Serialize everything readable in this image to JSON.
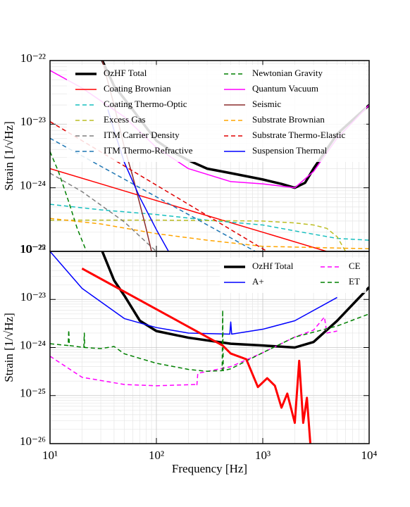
{
  "chart_data": [
    {
      "type": "line",
      "ylabel": "Strain [1/√Hz]",
      "log_x": true,
      "log_y": true,
      "grid": true,
      "minor_grid": true,
      "xlim": [
        10,
        10000
      ],
      "xticks": [
        10,
        100,
        1000,
        10000
      ],
      "xtick_labels": false,
      "ylim": [
        1e-25,
        1e-22
      ],
      "yticks": [
        {
          "value": 1e-25,
          "label": "10⁻²⁵"
        },
        {
          "value": 1e-24,
          "label": "10⁻²⁴"
        },
        {
          "value": 1e-23,
          "label": "10⁻²³"
        },
        {
          "value": 1e-22,
          "label": "10⁻²²"
        }
      ],
      "legend": "upper right",
      "legend_columns": 2,
      "series": [
        {
          "name": "OzHF Total",
          "color": "#000000",
          "linestyle": "solid",
          "linewidth": 3.5,
          "x": [
            31,
            40,
            50,
            70,
            100,
            150,
            200,
            300,
            500,
            1000,
            1500,
            2000,
            2500,
            3000,
            5000,
            10000
          ],
          "values": [
            1e-22,
            4e-23,
            2.5e-23,
            1.2e-23,
            5.5e-24,
            3.5e-24,
            2.7e-24,
            2e-24,
            1.7e-24,
            1.35e-24,
            1.15e-24,
            1e-24,
            1.2e-24,
            2e-24,
            7e-24,
            2e-23
          ]
        },
        {
          "name": "Coating Brownian",
          "color": "#ff0000",
          "linestyle": "solid",
          "linewidth": 1.5,
          "x": [
            10,
            100,
            1000,
            10000
          ],
          "values": [
            2e-24,
            6.3e-25,
            2e-25,
            6.3e-26
          ]
        },
        {
          "name": "Coating Thermo-Optic",
          "color": "#17bfbf",
          "linestyle": "dashed",
          "linewidth": 1.5,
          "x": [
            10,
            30,
            100,
            300,
            1000,
            2000,
            5000,
            10000
          ],
          "values": [
            5.5e-25,
            4.5e-25,
            3.8e-25,
            3.1e-25,
            2.6e-25,
            2.1e-25,
            1.6e-25,
            1.5e-25
          ]
        },
        {
          "name": "Excess Gas",
          "color": "#bcbd22",
          "linestyle": "dashed",
          "linewidth": 1.5,
          "x": [
            10,
            100,
            1000,
            2000,
            3000,
            4000,
            5000,
            6000
          ],
          "values": [
            3.1e-25,
            3.1e-25,
            3e-25,
            2.8e-25,
            2.6e-25,
            2.3e-25,
            1.7e-25,
            1e-25
          ]
        },
        {
          "name": "ITM Carrier Density",
          "color": "#7f7f7f",
          "linestyle": "dashed",
          "linewidth": 1.5,
          "x": [
            10,
            20,
            50,
            80,
            100
          ],
          "values": [
            1.7e-24,
            8.7e-25,
            2.9e-25,
            1.4e-25,
            1e-25
          ]
        },
        {
          "name": "ITM Thermo-Refractive",
          "color": "#1f77b4",
          "linestyle": "dashed",
          "linewidth": 1.5,
          "x": [
            10,
            100,
            850
          ],
          "values": [
            6e-24,
            7.2e-25,
            1e-25
          ]
        },
        {
          "name": "Newtonian Gravity",
          "color": "#008000",
          "linestyle": "dashed",
          "linewidth": 1.5,
          "x": [
            10,
            12,
            15,
            18,
            22
          ],
          "values": [
            3.7e-24,
            1.8e-24,
            6e-25,
            2.3e-25,
            1e-25
          ]
        },
        {
          "name": "Quantum Vacuum",
          "color": "#ff00ff",
          "linestyle": "solid",
          "linewidth": 1.5,
          "x": [
            10,
            20,
            50,
            100,
            200,
            500,
            1000,
            2000,
            3000,
            5000,
            10000
          ],
          "values": [
            7e-23,
            3.7e-23,
            1.3e-23,
            4.3e-24,
            2e-24,
            1.25e-24,
            1.15e-24,
            1e-24,
            1.8e-24,
            6e-24,
            2e-23
          ]
        },
        {
          "name": "Seismic",
          "color": "#8c2d2d",
          "linestyle": "solid",
          "linewidth": 1.5,
          "x": [
            31,
            40,
            50,
            60,
            70,
            80,
            90
          ],
          "values": [
            1e-22,
            2e-23,
            4.3e-24,
            1.5e-24,
            5.5e-25,
            2.3e-25,
            1e-25
          ]
        },
        {
          "name": "Substrate Brownian",
          "color": "#ffa500",
          "linestyle": "dashed",
          "linewidth": 1.5,
          "x": [
            10,
            30,
            100,
            300,
            1000,
            10000
          ],
          "values": [
            3.3e-25,
            2.7e-25,
            1.9e-25,
            1.5e-25,
            1.2e-25,
            1.1e-25
          ]
        },
        {
          "name": "Substrate Thermo-Elastic",
          "color": "#e00000",
          "linestyle": "dashed",
          "linewidth": 1.5,
          "x": [
            10,
            100,
            1000,
            1100
          ],
          "values": [
            1.1e-23,
            1.1e-24,
            1.1e-25,
            1e-25
          ]
        },
        {
          "name": "Suspension Thermal",
          "color": "#0000ff",
          "linestyle": "solid",
          "linewidth": 1.5,
          "x": [
            35,
            40,
            50,
            70,
            100,
            130
          ],
          "values": [
            1.7e-23,
            8e-24,
            2.5e-24,
            7e-25,
            2.2e-25,
            1e-25
          ]
        }
      ]
    },
    {
      "type": "line",
      "ylabel": "Strain [1/√Hz]",
      "xlabel": "Frequency [Hz]",
      "log_x": true,
      "log_y": true,
      "grid": true,
      "minor_grid": true,
      "xlim": [
        10,
        10000
      ],
      "xticks": [
        {
          "value": 10,
          "label": "10¹"
        },
        {
          "value": 100,
          "label": "10²"
        },
        {
          "value": 1000,
          "label": "10³"
        },
        {
          "value": 10000,
          "label": "10⁴"
        }
      ],
      "xtick_labels": true,
      "ylim": [
        1e-26,
        1e-22
      ],
      "yticks": [
        {
          "value": 1e-26,
          "label": "10⁻²⁶"
        },
        {
          "value": 1e-25,
          "label": "10⁻²⁵"
        },
        {
          "value": 1e-24,
          "label": "10⁻²⁴"
        },
        {
          "value": 1e-23,
          "label": "10⁻²³"
        },
        {
          "value": 1e-22,
          "label": "10⁻²²"
        }
      ],
      "legend": "upper right",
      "legend_columns": 2,
      "series": [
        {
          "name": "OzHf Total",
          "color": "#000000",
          "linestyle": "solid",
          "linewidth": 3.5,
          "x": [
            31,
            40,
            50,
            70,
            100,
            200,
            500,
            1000,
            2000,
            3000,
            5000,
            10000
          ],
          "values": [
            1e-22,
            2.5e-23,
            1.2e-23,
            3.6e-24,
            2.2e-24,
            1.6e-24,
            1.2e-24,
            1.1e-24,
            1e-24,
            1.3e-24,
            3.6e-24,
            1.8e-23
          ]
        },
        {
          "name": "A+",
          "color": "#0000ff",
          "linestyle": "solid",
          "linewidth": 1.5,
          "x": [
            10,
            20,
            50,
            100,
            200,
            490,
            500,
            510,
            1000,
            2000,
            5000
          ],
          "values": [
            1e-22,
            1.7e-23,
            4e-24,
            2.6e-24,
            2e-24,
            1.9e-24,
            3.4e-24,
            1.9e-24,
            2.4e-24,
            3.6e-24,
            1.1e-23
          ]
        },
        {
          "name": "CE",
          "color": "#ff00ff",
          "linestyle": "dashed",
          "linewidth": 1.5,
          "x": [
            10,
            20,
            50,
            100,
            235,
            240,
            245,
            500,
            1000,
            2000,
            3000,
            3800,
            4000,
            5000
          ],
          "values": [
            6.6e-25,
            2.4e-25,
            1.7e-25,
            1.6e-25,
            1.7e-25,
            1.6e-25,
            2.9e-25,
            4e-25,
            7.8e-25,
            1.65e-24,
            2.3e-24,
            4.3e-24,
            2e-24,
            2.2e-24
          ]
        },
        {
          "name": "ET",
          "color": "#008000",
          "linestyle": "dashed",
          "linewidth": 1.5,
          "x": [
            10,
            14.8,
            15,
            15.2,
            20.8,
            21,
            21.2,
            30,
            40,
            50,
            100,
            200,
            300,
            415,
            420,
            425,
            500,
            1000,
            2000,
            5000,
            10000
          ],
          "values": [
            1.2e-24,
            1.1e-24,
            2.3e-24,
            1.1e-24,
            1e-24,
            2e-24,
            1e-24,
            9.5e-25,
            1.05e-24,
            7.4e-25,
            4.7e-25,
            3.5e-25,
            3.2e-25,
            3.3e-25,
            6e-24,
            3.3e-25,
            3.6e-25,
            7.8e-25,
            1.65e-24,
            2.8e-24,
            5e-24
          ]
        },
        {
          "color": "#ff0000",
          "linestyle": "solid",
          "linewidth": 3,
          "x": [
            20,
            420,
            500,
            700,
            900,
            1100,
            1300,
            1500,
            1700,
            2000,
            2200,
            2400,
            2600,
            2800
          ],
          "values": [
            4.4e-23,
            1.1e-24,
            7.5e-25,
            5.7e-25,
            1.5e-25,
            2.3e-25,
            1.6e-25,
            5.6e-26,
            1.1e-25,
            2.7e-26,
            5.3e-25,
            2.7e-26,
            9e-26,
            1e-26
          ]
        }
      ]
    }
  ]
}
